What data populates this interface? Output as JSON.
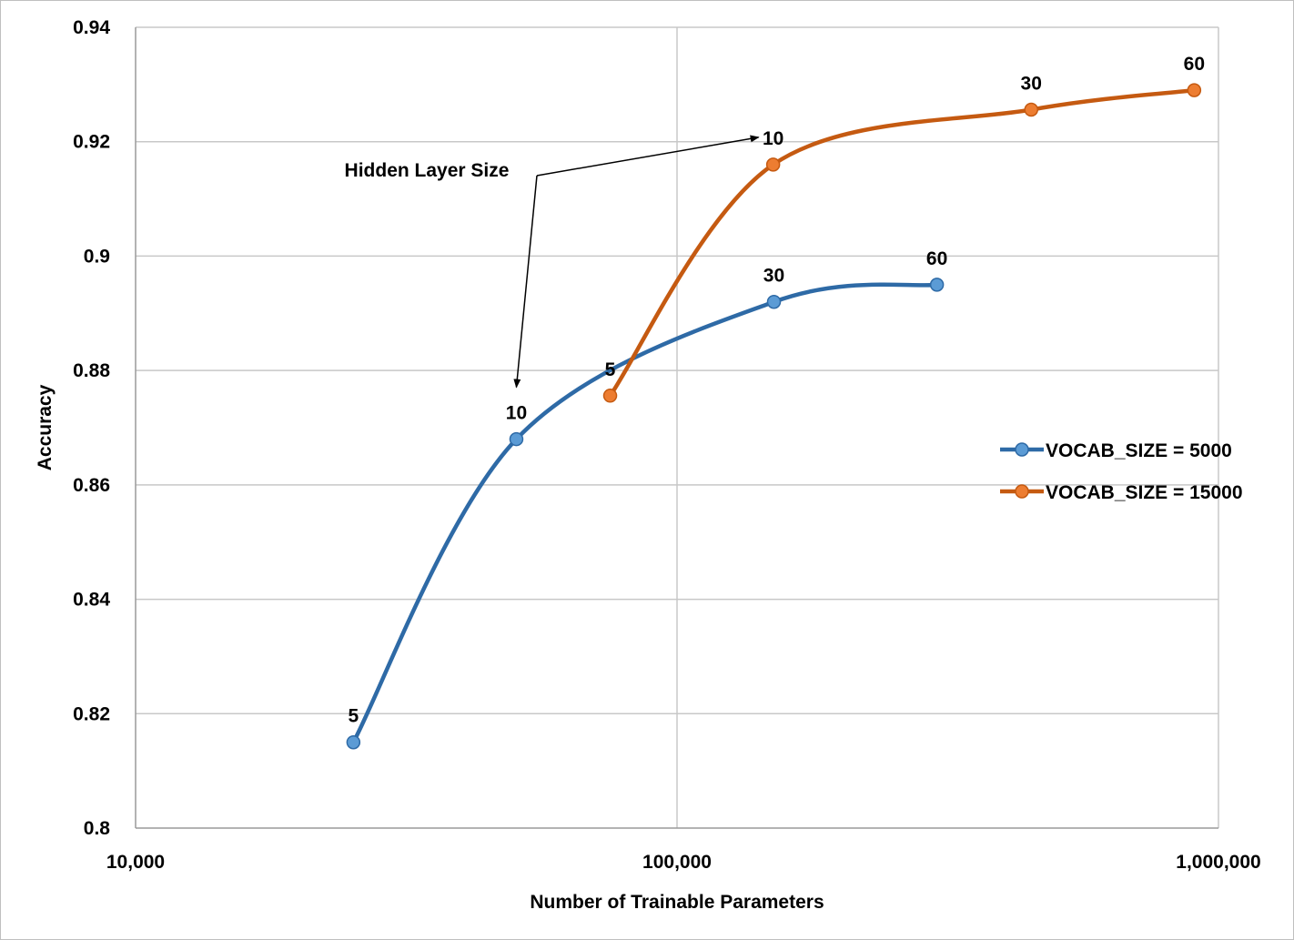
{
  "chart_data": {
    "type": "line",
    "title": "",
    "xlabel": "Number of Trainable Parameters",
    "ylabel": "Accuracy",
    "x_scale": "log",
    "xlim": [
      10000,
      1000000
    ],
    "ylim": [
      0.8,
      0.94
    ],
    "x_ticks": [
      10000,
      100000,
      1000000
    ],
    "x_tick_labels": [
      "10,000",
      "100,000",
      "1,000,000"
    ],
    "y_ticks": [
      0.8,
      0.82,
      0.84,
      0.86,
      0.88,
      0.9,
      0.92,
      0.94
    ],
    "y_tick_labels": [
      "0.8",
      "0.82",
      "0.84",
      "0.86",
      "0.88",
      "0.9",
      "0.92",
      "0.94"
    ],
    "grid": true,
    "legend_position": "right",
    "series": [
      {
        "name": "VOCAB_SIZE = 5000",
        "color": "#2e6aa6",
        "marker_color": "#5b9bd5",
        "points": [
          {
            "x": 25250,
            "y": 0.815,
            "label": "5"
          },
          {
            "x": 50500,
            "y": 0.868,
            "label": "10"
          },
          {
            "x": 151000,
            "y": 0.892,
            "label": "30"
          },
          {
            "x": 302000,
            "y": 0.895,
            "label": "60"
          }
        ]
      },
      {
        "name": "VOCAB_SIZE = 15000",
        "color": "#c55a11",
        "marker_color": "#ed7d31",
        "points": [
          {
            "x": 75250,
            "y": 0.8756,
            "label": "5"
          },
          {
            "x": 150500,
            "y": 0.916,
            "label": "10"
          },
          {
            "x": 451000,
            "y": 0.9256,
            "label": "30"
          },
          {
            "x": 902000,
            "y": 0.929,
            "label": "60"
          }
        ]
      }
    ],
    "annotations": [
      {
        "text": "Hidden Layer Size",
        "target_series": 1,
        "target_point": 1
      },
      {
        "text": "Hidden Layer Size",
        "target_series": 0,
        "target_point": 1
      }
    ]
  }
}
